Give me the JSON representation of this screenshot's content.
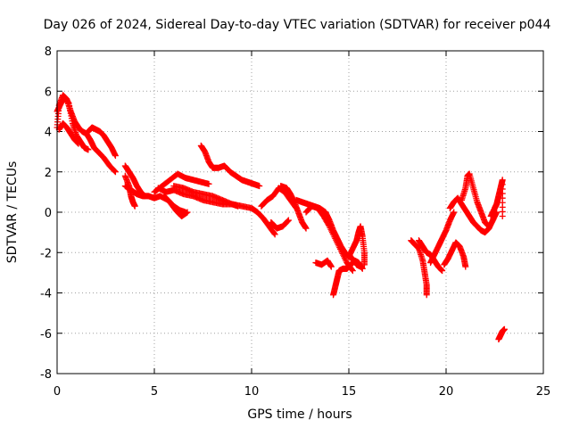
{
  "chart_data": {
    "type": "scatter",
    "title": "Day 026 of 2024, Sidereal Day-to-day VTEC variation (SDTVAR) for receiver p044",
    "xlabel": "GPS time / hours",
    "ylabel": "SDTVAR / TECUs",
    "xlim": [
      0,
      25
    ],
    "ylim": [
      -8,
      8
    ],
    "x_ticks": [
      "0",
      "5",
      "10",
      "15",
      "20",
      "25"
    ],
    "y_ticks": [
      "-8",
      "-6",
      "-4",
      "-2",
      "0",
      "2",
      "4",
      "6",
      "8"
    ],
    "grid": true,
    "marker": "+",
    "series": [
      {
        "name": "SDTVAR",
        "color": "#ff0000",
        "tracks": [
          [
            [
              0.0,
              4.2
            ],
            [
              0.1,
              5.3
            ],
            [
              0.3,
              5.8
            ],
            [
              0.5,
              5.6
            ],
            [
              0.7,
              5.0
            ],
            [
              0.9,
              4.5
            ],
            [
              1.1,
              4.2
            ],
            [
              1.3,
              4.0
            ],
            [
              1.5,
              3.9
            ],
            [
              1.7,
              3.6
            ],
            [
              1.9,
              3.2
            ],
            [
              2.1,
              3.0
            ],
            [
              2.4,
              2.7
            ],
            [
              2.7,
              2.3
            ],
            [
              3.0,
              2.0
            ]
          ],
          [
            [
              0.0,
              5.0
            ],
            [
              0.2,
              5.4
            ],
            [
              0.4,
              5.7
            ],
            [
              0.6,
              5.4
            ],
            [
              0.8,
              4.4
            ],
            [
              1.0,
              3.8
            ],
            [
              1.2,
              3.5
            ],
            [
              1.4,
              3.2
            ],
            [
              1.6,
              3.1
            ]
          ],
          [
            [
              0.1,
              4.1
            ],
            [
              0.3,
              4.4
            ],
            [
              0.5,
              4.2
            ],
            [
              0.7,
              3.9
            ],
            [
              0.9,
              3.6
            ],
            [
              1.1,
              3.4
            ]
          ],
          [
            [
              1.6,
              4.0
            ],
            [
              1.8,
              4.2
            ],
            [
              2.0,
              4.1
            ],
            [
              2.2,
              4.0
            ],
            [
              2.4,
              3.8
            ],
            [
              2.6,
              3.5
            ],
            [
              2.8,
              3.2
            ],
            [
              3.0,
              2.8
            ]
          ],
          [
            [
              3.5,
              2.3
            ],
            [
              3.7,
              2.0
            ],
            [
              3.9,
              1.7
            ],
            [
              4.1,
              1.3
            ],
            [
              4.3,
              1.0
            ],
            [
              4.5,
              0.8
            ]
          ],
          [
            [
              3.5,
              1.8
            ],
            [
              3.7,
              1.3
            ],
            [
              3.8,
              0.8
            ],
            [
              3.9,
              0.5
            ],
            [
              4.0,
              0.3
            ]
          ],
          [
            [
              3.5,
              1.3
            ],
            [
              3.8,
              1.1
            ],
            [
              4.1,
              0.9
            ],
            [
              4.4,
              0.8
            ],
            [
              4.7,
              0.8
            ],
            [
              5.0,
              0.7
            ],
            [
              5.3,
              0.8
            ],
            [
              5.7,
              0.6
            ],
            [
              6.0,
              0.3
            ],
            [
              6.3,
              0.1
            ],
            [
              6.6,
              0.0
            ]
          ],
          [
            [
              5.0,
              1.0
            ],
            [
              5.4,
              1.3
            ],
            [
              5.8,
              1.6
            ],
            [
              6.2,
              1.9
            ],
            [
              6.6,
              1.7
            ],
            [
              7.0,
              1.6
            ],
            [
              7.4,
              1.5
            ],
            [
              7.8,
              1.4
            ]
          ],
          [
            [
              5.5,
              0.8
            ],
            [
              5.8,
              0.5
            ],
            [
              6.1,
              0.1
            ],
            [
              6.4,
              -0.2
            ],
            [
              6.7,
              0.0
            ]
          ],
          [
            [
              5.2,
              1.2
            ],
            [
              5.6,
              1.0
            ],
            [
              6.0,
              1.1
            ],
            [
              6.5,
              0.9
            ],
            [
              7.0,
              0.8
            ],
            [
              7.5,
              0.6
            ],
            [
              8.0,
              0.5
            ],
            [
              8.5,
              0.4
            ],
            [
              9.0,
              0.4
            ],
            [
              9.5,
              0.3
            ],
            [
              10.0,
              0.2
            ],
            [
              10.3,
              0.0
            ],
            [
              10.6,
              -0.3
            ],
            [
              10.9,
              -0.7
            ],
            [
              11.2,
              -1.1
            ]
          ],
          [
            [
              6.0,
              1.3
            ],
            [
              6.5,
              1.2
            ],
            [
              7.0,
              1.0
            ],
            [
              7.5,
              0.9
            ],
            [
              8.0,
              0.8
            ],
            [
              8.5,
              0.6
            ],
            [
              9.0,
              0.4
            ],
            [
              9.3,
              0.3
            ]
          ],
          [
            [
              7.4,
              3.3
            ],
            [
              7.6,
              3.0
            ],
            [
              7.8,
              2.5
            ],
            [
              8.0,
              2.2
            ],
            [
              8.3,
              2.2
            ],
            [
              8.6,
              2.3
            ],
            [
              8.9,
              2.0
            ],
            [
              9.2,
              1.8
            ],
            [
              9.5,
              1.6
            ],
            [
              9.8,
              1.5
            ],
            [
              10.1,
              1.4
            ],
            [
              10.4,
              1.3
            ]
          ],
          [
            [
              10.5,
              0.3
            ],
            [
              10.8,
              0.6
            ],
            [
              11.1,
              0.8
            ],
            [
              11.4,
              1.2
            ],
            [
              11.7,
              1.0
            ],
            [
              12.0,
              0.6
            ],
            [
              12.3,
              0.2
            ]
          ],
          [
            [
              11.0,
              -0.5
            ],
            [
              11.3,
              -0.8
            ],
            [
              11.6,
              -0.7
            ],
            [
              11.9,
              -0.4
            ]
          ],
          [
            [
              11.5,
              1.3
            ],
            [
              11.8,
              1.2
            ],
            [
              12.0,
              0.9
            ],
            [
              12.2,
              0.5
            ],
            [
              12.4,
              0.0
            ],
            [
              12.6,
              -0.5
            ],
            [
              12.8,
              -0.8
            ]
          ],
          [
            [
              12.3,
              0.6
            ],
            [
              12.6,
              0.5
            ],
            [
              12.9,
              0.4
            ],
            [
              13.2,
              0.3
            ],
            [
              13.5,
              0.2
            ],
            [
              13.8,
              0.0
            ],
            [
              14.0,
              -0.4
            ],
            [
              14.2,
              -0.9
            ],
            [
              14.4,
              -1.3
            ],
            [
              14.6,
              -1.7
            ],
            [
              14.8,
              -2.0
            ],
            [
              15.0,
              -2.2
            ],
            [
              15.2,
              -2.3
            ],
            [
              15.4,
              -2.6
            ],
            [
              15.6,
              -2.7
            ]
          ],
          [
            [
              12.8,
              0.0
            ],
            [
              13.1,
              0.3
            ],
            [
              13.4,
              0.2
            ],
            [
              13.7,
              -0.2
            ],
            [
              14.0,
              -0.7
            ],
            [
              14.3,
              -1.3
            ],
            [
              14.6,
              -1.9
            ],
            [
              14.9,
              -2.5
            ],
            [
              15.2,
              -2.9
            ]
          ],
          [
            [
              13.3,
              -2.5
            ],
            [
              13.6,
              -2.6
            ],
            [
              13.9,
              -2.4
            ],
            [
              14.1,
              -2.7
            ]
          ],
          [
            [
              14.2,
              -4.1
            ],
            [
              14.3,
              -3.7
            ],
            [
              14.4,
              -3.3
            ],
            [
              14.5,
              -2.9
            ],
            [
              14.7,
              -2.8
            ],
            [
              14.9,
              -2.8
            ],
            [
              15.1,
              -2.6
            ],
            [
              15.3,
              -2.4
            ],
            [
              15.5,
              -2.5
            ],
            [
              15.7,
              -2.8
            ]
          ],
          [
            [
              15.0,
              -2.2
            ],
            [
              15.2,
              -1.8
            ],
            [
              15.4,
              -1.4
            ],
            [
              15.5,
              -1.0
            ],
            [
              15.6,
              -0.7
            ],
            [
              15.7,
              -1.2
            ],
            [
              15.8,
              -2.0
            ],
            [
              15.8,
              -2.6
            ]
          ],
          [
            [
              18.2,
              -1.4
            ],
            [
              18.4,
              -1.6
            ],
            [
              18.6,
              -1.8
            ],
            [
              18.8,
              -2.4
            ],
            [
              18.9,
              -3.0
            ],
            [
              19.0,
              -3.6
            ],
            [
              19.0,
              -4.1
            ]
          ],
          [
            [
              18.6,
              -1.4
            ],
            [
              18.8,
              -1.7
            ],
            [
              19.0,
              -2.0
            ],
            [
              19.2,
              -2.1
            ],
            [
              19.4,
              -2.4
            ],
            [
              19.6,
              -2.7
            ],
            [
              19.8,
              -2.9
            ]
          ],
          [
            [
              19.2,
              -2.5
            ],
            [
              19.4,
              -2.1
            ],
            [
              19.6,
              -1.7
            ],
            [
              19.8,
              -1.3
            ],
            [
              20.0,
              -0.9
            ],
            [
              20.2,
              -0.4
            ],
            [
              20.4,
              0.0
            ]
          ],
          [
            [
              19.9,
              -2.6
            ],
            [
              20.1,
              -2.3
            ],
            [
              20.3,
              -1.9
            ],
            [
              20.5,
              -1.5
            ],
            [
              20.7,
              -1.7
            ],
            [
              20.9,
              -2.2
            ],
            [
              21.0,
              -2.7
            ]
          ],
          [
            [
              20.2,
              0.2
            ],
            [
              20.4,
              0.5
            ],
            [
              20.6,
              0.7
            ],
            [
              20.8,
              0.4
            ],
            [
              21.0,
              0.1
            ],
            [
              21.2,
              -0.2
            ],
            [
              21.4,
              -0.5
            ],
            [
              21.6,
              -0.7
            ],
            [
              21.8,
              -0.9
            ],
            [
              22.0,
              -1.0
            ],
            [
              22.2,
              -0.8
            ],
            [
              22.4,
              -0.4
            ],
            [
              22.6,
              0.0
            ]
          ],
          [
            [
              20.8,
              0.6
            ],
            [
              21.0,
              1.2
            ],
            [
              21.1,
              1.8
            ],
            [
              21.2,
              1.9
            ],
            [
              21.4,
              1.2
            ],
            [
              21.6,
              0.5
            ],
            [
              21.8,
              0.0
            ],
            [
              22.0,
              -0.5
            ],
            [
              22.2,
              -0.7
            ]
          ],
          [
            [
              22.3,
              -0.2
            ],
            [
              22.5,
              0.2
            ],
            [
              22.6,
              0.4
            ],
            [
              22.7,
              0.8
            ],
            [
              22.8,
              1.2
            ],
            [
              22.9,
              1.6
            ],
            [
              22.9,
              -0.2
            ]
          ],
          [
            [
              22.7,
              -6.3
            ],
            [
              22.8,
              -6.1
            ],
            [
              22.9,
              -5.9
            ],
            [
              23.0,
              -5.8
            ]
          ]
        ]
      }
    ]
  }
}
